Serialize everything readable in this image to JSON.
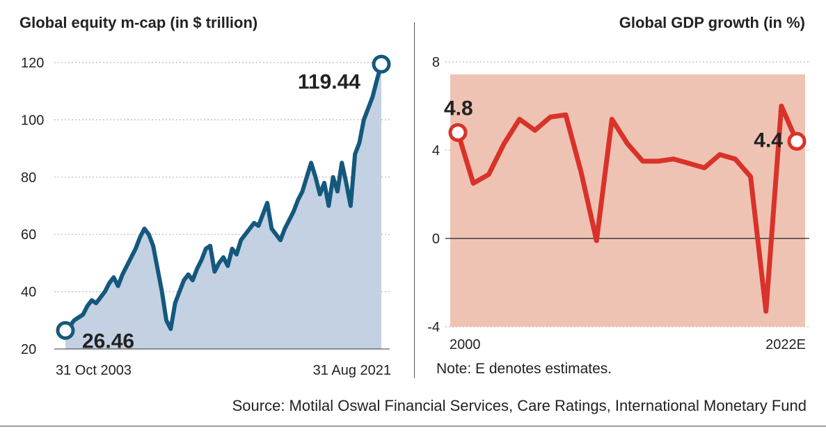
{
  "chart_data": [
    {
      "type": "area",
      "title": "Global equity m-cap (in $ trillion)",
      "ylim": [
        20,
        120
      ],
      "yticks": [
        20,
        40,
        60,
        80,
        100,
        120
      ],
      "xlabels": [
        "31 Oct 2003",
        "31 Aug 2021"
      ],
      "series": [
        {
          "name": "Global equity m-cap",
          "values": [
            26.46,
            28,
            30,
            31,
            32,
            35,
            37,
            36,
            38,
            40,
            43,
            45,
            42,
            46,
            49,
            52,
            55,
            59,
            62,
            60,
            56,
            48,
            40,
            30,
            27,
            36,
            40,
            44,
            46,
            44,
            48,
            51,
            55,
            56,
            47,
            50,
            52,
            49,
            55,
            53,
            58,
            60,
            62,
            64,
            63,
            67,
            71,
            62,
            60,
            58,
            62,
            65,
            68,
            72,
            75,
            80,
            85,
            80,
            74,
            78,
            70,
            80,
            75,
            85,
            78,
            70,
            88,
            92,
            100,
            104,
            108,
            114,
            119.44
          ]
        }
      ],
      "annotations": {
        "start": "26.46",
        "end": "119.44"
      }
    },
    {
      "type": "area",
      "title": "Global GDP growth (in %)",
      "ylim": [
        -4,
        8
      ],
      "yticks": [
        -4,
        0,
        4,
        8
      ],
      "xlabels": [
        "2000",
        "2022E"
      ],
      "x": [
        "2000",
        "2001",
        "2002",
        "2003",
        "2004",
        "2005",
        "2006",
        "2007",
        "2008",
        "2009",
        "2010",
        "2011",
        "2012",
        "2013",
        "2014",
        "2015",
        "2016",
        "2017",
        "2018",
        "2019",
        "2020",
        "2021",
        "2022E"
      ],
      "series": [
        {
          "name": "Global GDP growth",
          "values": [
            4.8,
            2.5,
            2.9,
            4.3,
            5.4,
            4.9,
            5.5,
            5.6,
            3.0,
            -0.1,
            5.4,
            4.3,
            3.5,
            3.5,
            3.6,
            3.4,
            3.2,
            3.8,
            3.6,
            2.8,
            -3.3,
            6.0,
            4.4
          ]
        }
      ],
      "annotations": {
        "start": "4.8",
        "end": "4.4"
      }
    }
  ],
  "left_title": "Global equity m-cap (in $ trillion)",
  "right_title": "Global GDP growth (in %)",
  "note": "Note: E denotes estimates.",
  "source": "Source: Motilal Oswal Financial Services, Care Ratings, International Monetary Fund",
  "colors": {
    "equity_line": "#15587d",
    "equity_fill": "#c3d1e3",
    "gdp_line": "#d9322a",
    "gdp_fill": "#efc3b3",
    "grid": "#b8b8b8"
  }
}
